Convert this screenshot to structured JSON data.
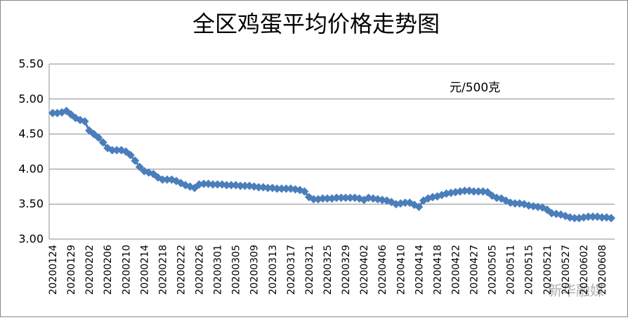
{
  "chart_data": {
    "type": "line",
    "title": "全区鸡蛋平均价格走势图",
    "annotation": "元/500克",
    "watermark": "新华融媒",
    "categories": [
      "20200124",
      null,
      null,
      null,
      "20200129",
      null,
      null,
      null,
      "20200202",
      null,
      null,
      null,
      "20200206",
      null,
      null,
      null,
      "20200210",
      null,
      null,
      null,
      "20200214",
      null,
      null,
      null,
      "20200218",
      null,
      null,
      null,
      "20200222",
      null,
      null,
      null,
      "20200226",
      null,
      null,
      null,
      "20200301",
      null,
      null,
      null,
      "20200305",
      null,
      null,
      null,
      "20200309",
      null,
      null,
      null,
      "20200313",
      null,
      null,
      null,
      "20200317",
      null,
      null,
      null,
      "20200321",
      null,
      null,
      null,
      "20200325",
      null,
      null,
      null,
      "20200329",
      null,
      null,
      null,
      "20200402",
      null,
      null,
      null,
      "20200406",
      null,
      null,
      null,
      "20200410",
      null,
      null,
      null,
      "20200414",
      null,
      null,
      null,
      "20200418",
      null,
      null,
      null,
      "20200422",
      null,
      null,
      null,
      "20200427",
      null,
      null,
      null,
      "20200505",
      null,
      null,
      null,
      "20200511",
      null,
      null,
      null,
      "20200515",
      null,
      null,
      null,
      "20200521",
      null,
      null,
      null,
      "20200527",
      null,
      null,
      null,
      "20200602",
      null,
      null,
      null,
      "20200608",
      null,
      null
    ],
    "values": [
      4.8,
      4.8,
      4.81,
      4.83,
      4.78,
      4.73,
      4.7,
      4.68,
      4.55,
      4.5,
      4.45,
      4.38,
      4.3,
      4.27,
      4.27,
      4.27,
      4.25,
      4.2,
      4.12,
      4.03,
      3.97,
      3.95,
      3.93,
      3.88,
      3.85,
      3.85,
      3.85,
      3.83,
      3.8,
      3.77,
      3.75,
      3.73,
      3.78,
      3.79,
      3.79,
      3.78,
      3.78,
      3.78,
      3.77,
      3.77,
      3.77,
      3.76,
      3.76,
      3.76,
      3.75,
      3.74,
      3.74,
      3.73,
      3.73,
      3.72,
      3.72,
      3.72,
      3.72,
      3.71,
      3.7,
      3.68,
      3.6,
      3.57,
      3.57,
      3.58,
      3.58,
      3.58,
      3.59,
      3.59,
      3.59,
      3.59,
      3.59,
      3.58,
      3.56,
      3.59,
      3.58,
      3.57,
      3.56,
      3.55,
      3.53,
      3.5,
      3.51,
      3.52,
      3.52,
      3.49,
      3.46,
      3.55,
      3.58,
      3.6,
      3.61,
      3.63,
      3.65,
      3.66,
      3.67,
      3.68,
      3.69,
      3.69,
      3.68,
      3.68,
      3.68,
      3.67,
      3.62,
      3.59,
      3.58,
      3.55,
      3.52,
      3.51,
      3.51,
      3.5,
      3.48,
      3.47,
      3.46,
      3.45,
      3.42,
      3.37,
      3.36,
      3.35,
      3.33,
      3.31,
      3.3,
      3.3,
      3.31,
      3.32,
      3.32,
      3.32,
      3.31,
      3.31,
      3.3
    ],
    "color": "#4a7ebb",
    "ylim": [
      3.0,
      5.5
    ],
    "yticks": [
      {
        "value": 3.0,
        "label": "3.00"
      },
      {
        "value": 3.5,
        "label": "3.50"
      },
      {
        "value": 4.0,
        "label": "4.00"
      },
      {
        "value": 4.5,
        "label": "4.50"
      },
      {
        "value": 5.0,
        "label": "5.00"
      },
      {
        "value": 5.5,
        "label": "5.50"
      }
    ],
    "grid": true
  }
}
